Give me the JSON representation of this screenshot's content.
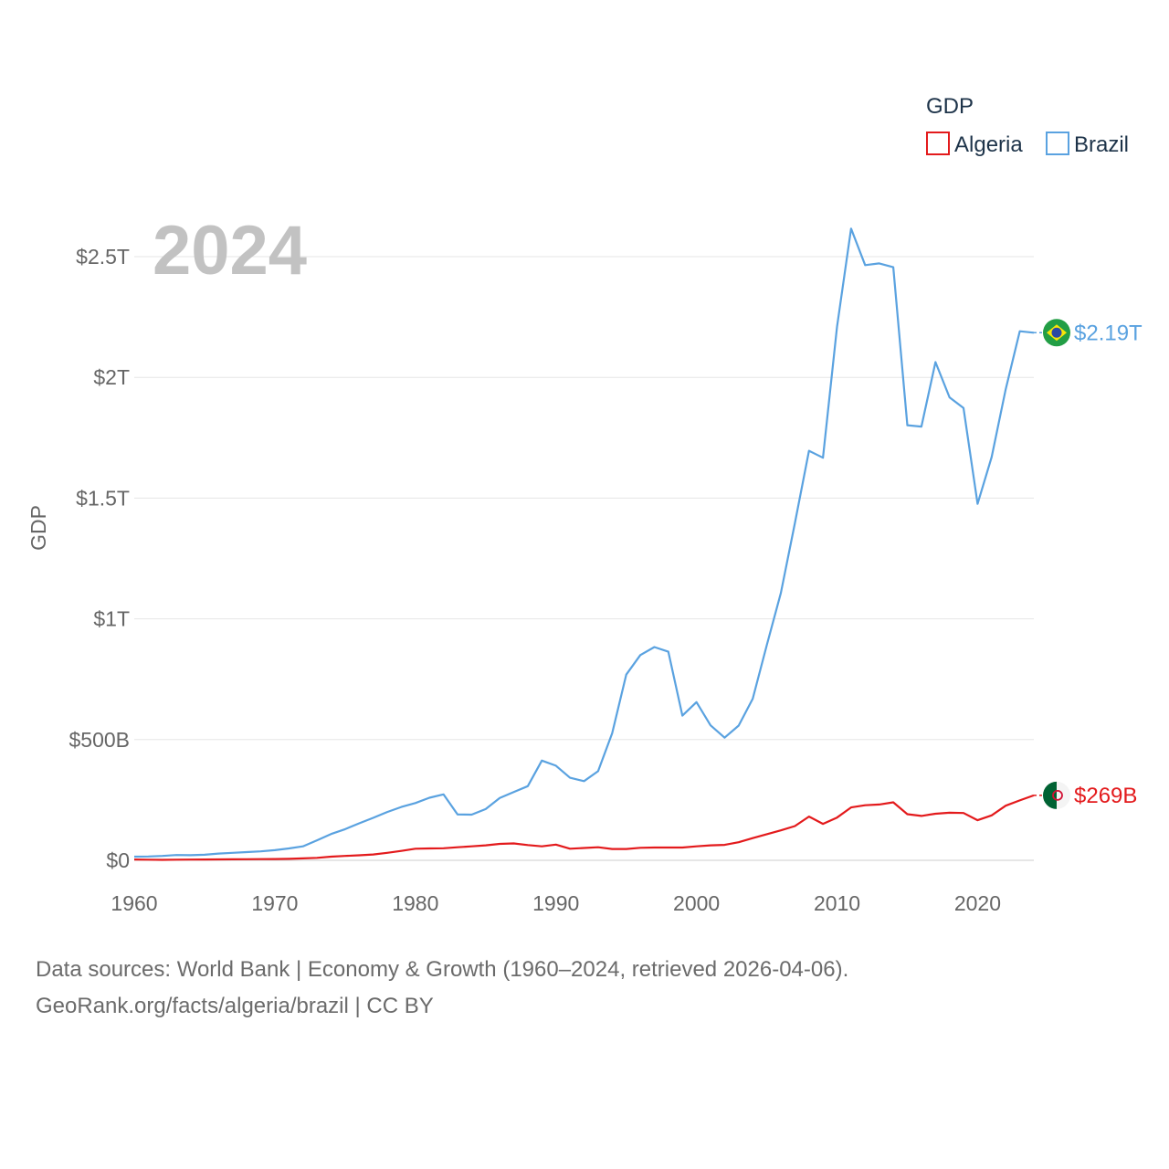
{
  "chart_data": {
    "type": "line",
    "title": "",
    "year_label": "2024",
    "xlabel": "",
    "ylabel": "GDP",
    "xlim": [
      1960,
      2024
    ],
    "ylim": [
      0,
      2500000000000
    ],
    "x_ticks": [
      1960,
      1970,
      1980,
      1990,
      2000,
      2010,
      2020
    ],
    "x_tick_labels": [
      "1960",
      "1970",
      "1980",
      "1990",
      "2000",
      "2010",
      "2020"
    ],
    "y_ticks": [
      0,
      500000000000,
      1000000000000,
      1500000000000,
      2000000000000,
      2500000000000
    ],
    "y_tick_labels": [
      "$0",
      "$500B",
      "$1T",
      "$1.5T",
      "$2T",
      "$2.5T"
    ],
    "grid": true,
    "legend": {
      "title": "GDP",
      "position": "top-right",
      "entries": [
        "Algeria",
        "Brazil"
      ]
    },
    "x": [
      1960,
      1961,
      1962,
      1963,
      1964,
      1965,
      1966,
      1967,
      1968,
      1969,
      1970,
      1971,
      1972,
      1973,
      1974,
      1975,
      1976,
      1977,
      1978,
      1979,
      1980,
      1981,
      1982,
      1983,
      1984,
      1985,
      1986,
      1987,
      1988,
      1989,
      1990,
      1991,
      1992,
      1993,
      1994,
      1995,
      1996,
      1997,
      1998,
      1999,
      2000,
      2001,
      2002,
      2003,
      2004,
      2005,
      2006,
      2007,
      2008,
      2009,
      2010,
      2011,
      2012,
      2013,
      2014,
      2015,
      2016,
      2017,
      2018,
      2019,
      2020,
      2021,
      2022,
      2023,
      2024
    ],
    "series": [
      {
        "name": "Algeria",
        "color": "#e31a1c",
        "end_label": "$269B",
        "values": [
          3.3,
          2.6,
          2.0,
          2.8,
          3.2,
          3.5,
          3.6,
          4.0,
          4.6,
          5.0,
          5.4,
          5.9,
          8.0,
          10.3,
          15.1,
          18.0,
          20.9,
          24.3,
          31.0,
          39.0,
          48.0,
          49.0,
          50.0,
          54.0,
          58.0,
          62.0,
          68.0,
          70.0,
          63.0,
          58.0,
          65.0,
          48.0,
          51.0,
          54.0,
          47.0,
          47.0,
          52.0,
          53.0,
          53.0,
          53.0,
          58.0,
          62.0,
          64.0,
          75.0,
          92.0,
          108.0,
          124.0,
          142.0,
          181.0,
          151.0,
          177.0,
          219.0,
          228.0,
          231.0,
          240.0,
          191.0,
          184.0,
          193.0,
          197.0,
          196.0,
          166.0,
          186.0,
          226.0,
          248.0,
          269.0
        ]
      },
      {
        "name": "Brazil",
        "color": "#5aa2e0",
        "end_label": "$2.19T",
        "values": [
          15.0,
          16.0,
          18.0,
          22.0,
          21.0,
          23.0,
          28.0,
          31.0,
          34.0,
          37.0,
          42.0,
          49.0,
          58.0,
          83.0,
          109.0,
          129.0,
          153.0,
          176.0,
          200.0,
          221.0,
          237.0,
          259.0,
          273.0,
          190.0,
          189.0,
          212.0,
          258.0,
          283.0,
          307.0,
          413.0,
          392.0,
          342.0,
          328.0,
          369.0,
          526.0,
          769.0,
          850.0,
          883.0,
          864.0,
          599.0,
          655.0,
          559.0,
          508.0,
          558.0,
          669.0,
          891.0,
          1107.0,
          1397.0,
          1696.0,
          1667.0,
          2209.0,
          2616.0,
          2465.0,
          2472.0,
          2456.0,
          1802.0,
          1796.0,
          2063.0,
          1917.0,
          1873.0,
          1476.0,
          1670.0,
          1951.0,
          2191.0,
          2185.0
        ]
      }
    ],
    "value_unit": "billion USD"
  },
  "footer": {
    "line1": "Data sources: World Bank | Economy & Growth (1960–2024, retrieved 2026-04-06).",
    "line2": "GeoRank.org/facts/algeria/brazil | CC BY"
  }
}
